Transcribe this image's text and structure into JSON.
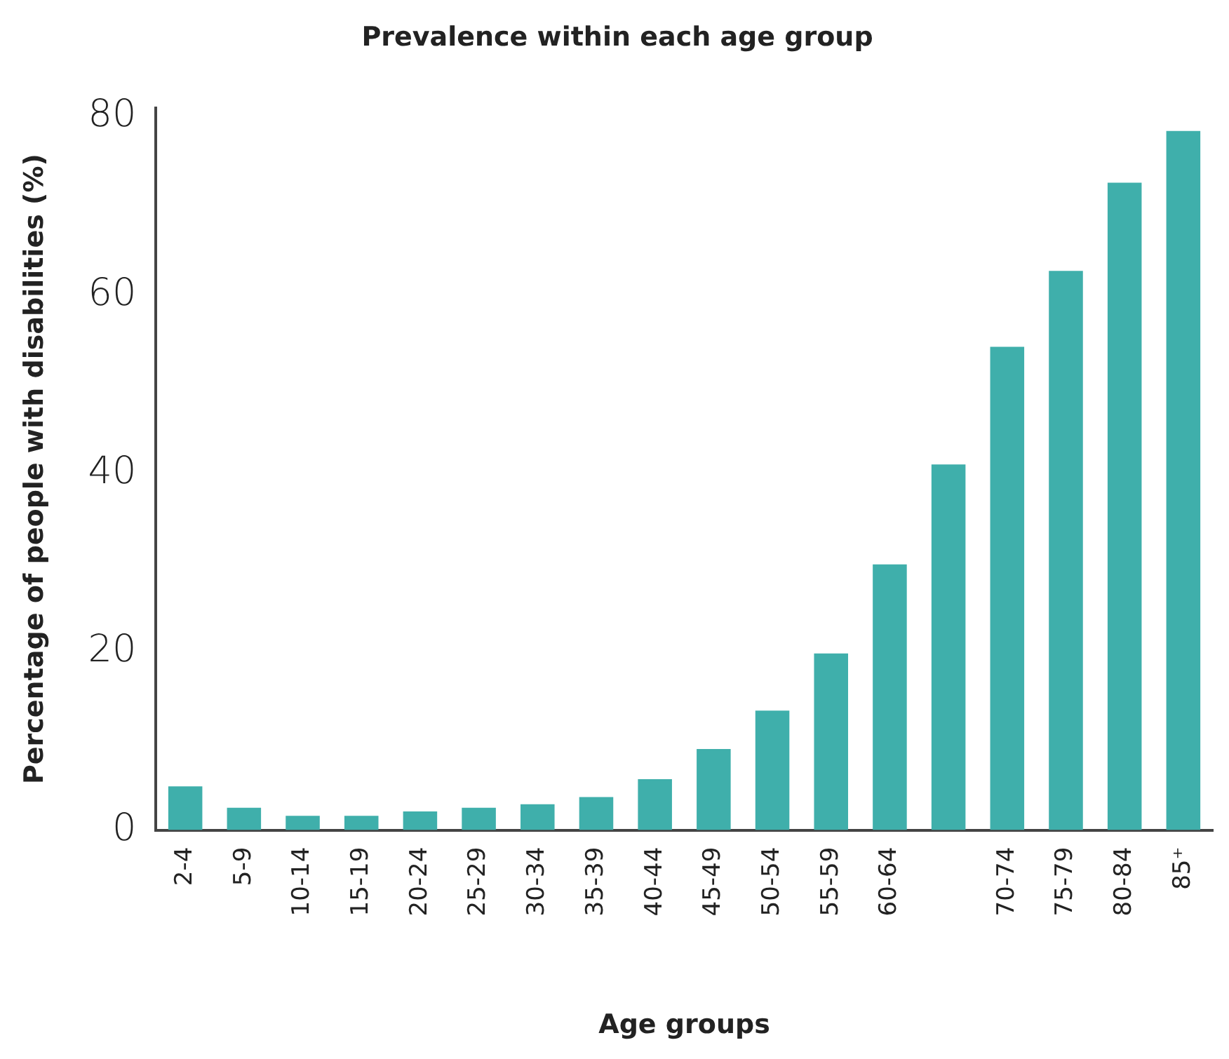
{
  "chart_data": {
    "type": "bar",
    "title": "Prevalence within each age group",
    "xlabel": "Age groups",
    "ylabel": "Percentage of people with disabilities (%)",
    "categories": [
      "2-4",
      "5-9",
      "10-14",
      "15-19",
      "20-24",
      "25-29",
      "30-34",
      "35-39",
      "40-44",
      "45-49",
      "50-54",
      "55-59",
      "60-64",
      null,
      "70-74",
      "75-79",
      "80-84",
      "85⁺"
    ],
    "values": [
      4.9,
      2.5,
      1.6,
      1.6,
      2.1,
      2.5,
      2.9,
      3.7,
      5.7,
      9.1,
      13.4,
      19.8,
      29.8,
      41,
      54.2,
      62.7,
      72.6,
      78.4
    ],
    "color": "#3fafab",
    "ylim": [
      0,
      81
    ],
    "yticks": [
      0,
      20,
      40,
      60,
      80
    ],
    "grid": false,
    "legend": false
  }
}
